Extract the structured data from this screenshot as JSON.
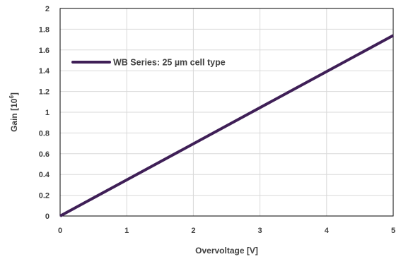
{
  "chart_data": {
    "type": "line",
    "title": "",
    "xlabel": "Overvoltage [V]",
    "ylabel_main": "Gain [10",
    "ylabel_sup": "6",
    "ylabel_end": "]",
    "xlim": [
      0,
      5
    ],
    "ylim": [
      0,
      2
    ],
    "x_ticks": [
      0,
      1,
      2,
      3,
      4,
      5
    ],
    "x_tick_labels": [
      "0",
      "1",
      "2",
      "3",
      "4",
      "5"
    ],
    "y_ticks": [
      0,
      0.2,
      0.4,
      0.6,
      0.8,
      1.0,
      1.2,
      1.4,
      1.6,
      1.8,
      2.0
    ],
    "y_tick_labels": [
      "0",
      "0.2",
      "0.4",
      "0.6",
      "0.8",
      "1",
      "1.2",
      "1.4",
      "1.6",
      "1.8",
      "2"
    ],
    "grid": true,
    "legend_position": "upper-left, inside plot area",
    "series": [
      {
        "name": "WB Series: 25 µm cell type",
        "color": "#3f1f57",
        "x": [
          0,
          5
        ],
        "y": [
          0,
          1.74
        ]
      }
    ]
  }
}
